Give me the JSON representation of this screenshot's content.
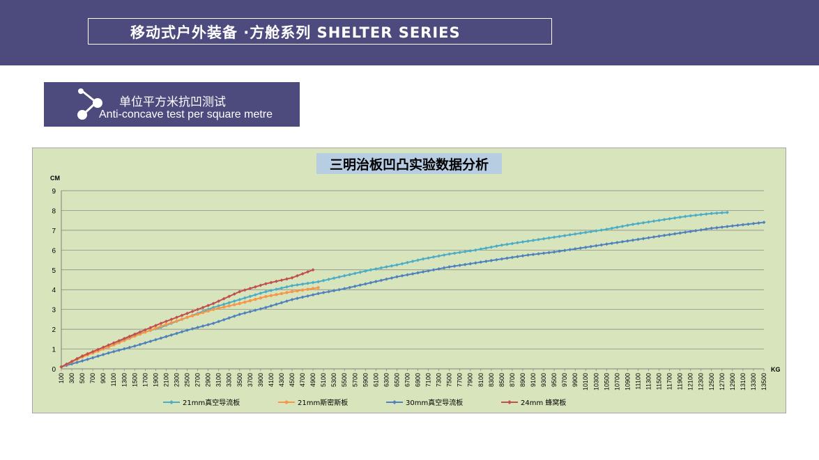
{
  "header": {
    "title": "移动式户外装备 ·方舱系列  SHELTER SERIES"
  },
  "section": {
    "title_cn": "单位平方米抗凹测试",
    "title_en": "Anti-concave test per square metre",
    "icon": "share-node-icon"
  },
  "colors": {
    "banner": "#4d4a7e",
    "chart_bg": "#d8e4bc",
    "series": [
      "#4bacc6",
      "#f79646",
      "#4f81bd",
      "#c0504d"
    ]
  },
  "chart_data": {
    "type": "line",
    "title": "三明治板凹凸实验数据分析",
    "xlabel": "KG",
    "ylabel": "CM",
    "ylim": [
      0,
      9
    ],
    "yticks": [
      0,
      1,
      2,
      3,
      4,
      5,
      6,
      7,
      8,
      9
    ],
    "xlim": [
      100,
      13500
    ],
    "xtick_step": 200,
    "x_step": 100,
    "grid": "horizontal",
    "legend": "bottom",
    "series": [
      {
        "name": "21mm真空导流板",
        "points": [
          [
            100,
            0.1
          ],
          [
            500,
            0.6
          ],
          [
            1000,
            1.2
          ],
          [
            1500,
            1.7
          ],
          [
            2000,
            2.1
          ],
          [
            2500,
            2.6
          ],
          [
            3000,
            3.1
          ],
          [
            3500,
            3.5
          ],
          [
            4000,
            3.9
          ],
          [
            4500,
            4.2
          ],
          [
            5000,
            4.4
          ],
          [
            5500,
            4.7
          ],
          [
            6000,
            5.0
          ],
          [
            6500,
            5.25
          ],
          [
            7000,
            5.55
          ],
          [
            7500,
            5.8
          ],
          [
            8000,
            6.0
          ],
          [
            8500,
            6.25
          ],
          [
            9000,
            6.45
          ],
          [
            9500,
            6.65
          ],
          [
            10000,
            6.85
          ],
          [
            10500,
            7.05
          ],
          [
            11000,
            7.3
          ],
          [
            11500,
            7.5
          ],
          [
            12000,
            7.7
          ],
          [
            12500,
            7.85
          ],
          [
            12800,
            7.9
          ]
        ]
      },
      {
        "name": "21mm斯密斯板",
        "points": [
          [
            100,
            0.1
          ],
          [
            500,
            0.6
          ],
          [
            1000,
            1.1
          ],
          [
            1500,
            1.65
          ],
          [
            2000,
            2.15
          ],
          [
            2500,
            2.6
          ],
          [
            3000,
            3.0
          ],
          [
            3500,
            3.3
          ],
          [
            4000,
            3.65
          ],
          [
            4500,
            3.9
          ],
          [
            5000,
            4.1
          ]
        ]
      },
      {
        "name": "30mm真空导流板",
        "points": [
          [
            100,
            0.1
          ],
          [
            500,
            0.4
          ],
          [
            1000,
            0.8
          ],
          [
            1500,
            1.15
          ],
          [
            2000,
            1.55
          ],
          [
            2500,
            1.95
          ],
          [
            3000,
            2.3
          ],
          [
            3500,
            2.75
          ],
          [
            4000,
            3.1
          ],
          [
            4500,
            3.5
          ],
          [
            5000,
            3.8
          ],
          [
            5500,
            4.05
          ],
          [
            6000,
            4.35
          ],
          [
            6500,
            4.65
          ],
          [
            7000,
            4.9
          ],
          [
            7500,
            5.15
          ],
          [
            8000,
            5.35
          ],
          [
            8500,
            5.55
          ],
          [
            9000,
            5.75
          ],
          [
            9500,
            5.9
          ],
          [
            10000,
            6.1
          ],
          [
            10500,
            6.3
          ],
          [
            11000,
            6.5
          ],
          [
            11500,
            6.7
          ],
          [
            12000,
            6.9
          ],
          [
            12500,
            7.1
          ],
          [
            13000,
            7.25
          ],
          [
            13500,
            7.4
          ]
        ]
      },
      {
        "name": "24mm 蜂窝板",
        "points": [
          [
            100,
            0.1
          ],
          [
            500,
            0.65
          ],
          [
            1000,
            1.2
          ],
          [
            1500,
            1.75
          ],
          [
            2000,
            2.3
          ],
          [
            2500,
            2.8
          ],
          [
            3000,
            3.3
          ],
          [
            3500,
            3.9
          ],
          [
            4000,
            4.3
          ],
          [
            4500,
            4.6
          ],
          [
            4900,
            5.0
          ]
        ]
      }
    ]
  }
}
